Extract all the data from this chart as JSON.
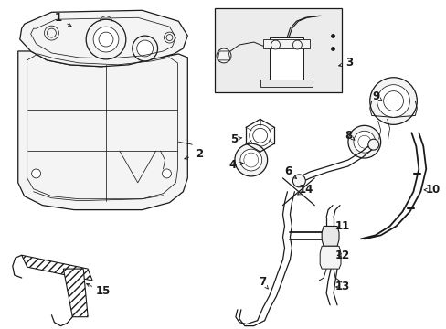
{
  "bg_color": "#ffffff",
  "line_color": "#1a1a1a",
  "fig_w": 4.89,
  "fig_h": 3.6,
  "dpi": 100,
  "font_size": 8.5,
  "lw_main": 0.9,
  "lw_thin": 0.55,
  "lw_thick": 1.3,
  "gray_fill": "#e8e8e8",
  "light_fill": "#f4f4f4",
  "inset_fill": "#ececec"
}
